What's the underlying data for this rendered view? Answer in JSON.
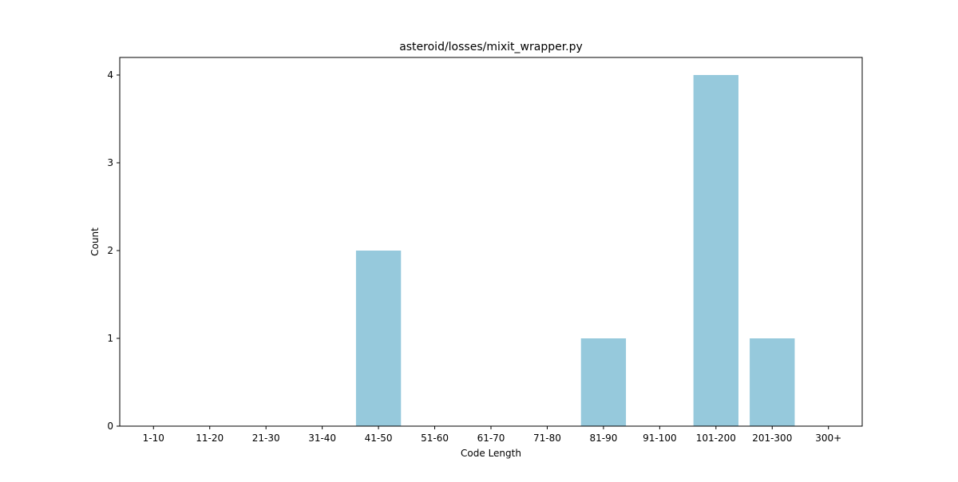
{
  "chart_data": {
    "type": "bar",
    "title": "asteroid/losses/mixit_wrapper.py",
    "xlabel": "Code Length",
    "ylabel": "Count",
    "categories": [
      "1-10",
      "11-20",
      "21-30",
      "31-40",
      "41-50",
      "51-60",
      "61-70",
      "71-80",
      "81-90",
      "91-100",
      "101-200",
      "201-300",
      "300+"
    ],
    "values": [
      0,
      0,
      0,
      0,
      2,
      0,
      0,
      0,
      1,
      0,
      4,
      1,
      0
    ],
    "yticks": [
      0,
      1,
      2,
      3,
      4
    ],
    "ylim": [
      0,
      4.2
    ],
    "bar_color": "#96c9dc",
    "grid": false,
    "legend": "none"
  }
}
